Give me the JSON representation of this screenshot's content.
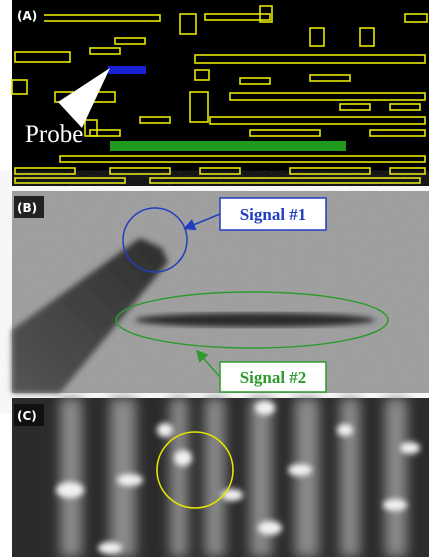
{
  "panels": [
    {
      "label": "(A)",
      "annotations": [
        "Probe"
      ]
    },
    {
      "label": "(B)",
      "annotations": [
        "Signal #1",
        "Signal #2"
      ]
    },
    {
      "label": "(C)"
    }
  ]
}
